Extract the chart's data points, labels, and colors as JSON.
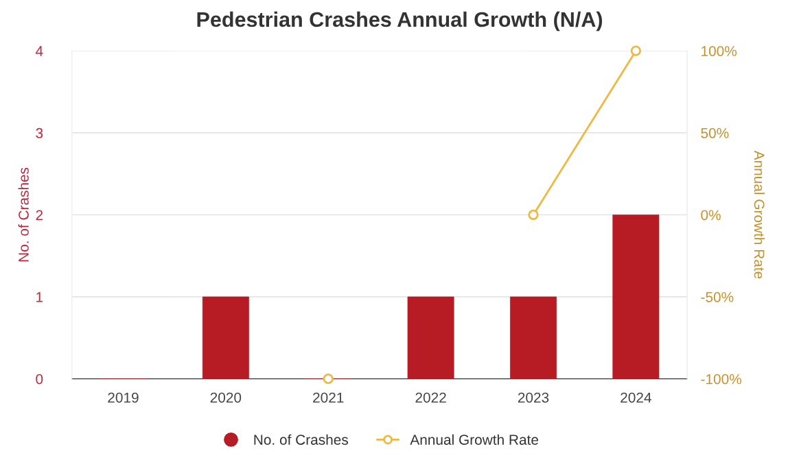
{
  "chart_data": {
    "type": "bar",
    "title": "Pedestrian Crashes Annual Growth (N/A)",
    "ylabel": "No. of Crashes",
    "y2label": "Annual Growth Rate",
    "categories": [
      "2019",
      "2020",
      "2021",
      "2022",
      "2023",
      "2024"
    ],
    "series": [
      {
        "name": "No. of Crashes",
        "color": "#b71c24",
        "values": [
          0,
          1,
          0,
          1,
          1,
          2
        ]
      },
      {
        "name": "Annual Growth Rate",
        "type": "line",
        "axis": "y2",
        "color": "#f0b840",
        "marker": "circle",
        "values": [
          null,
          null,
          -100,
          null,
          0,
          100
        ]
      }
    ],
    "ylim": [
      0,
      4
    ],
    "yticks": [
      0,
      1,
      2,
      3,
      4
    ],
    "y2lim": [
      -100,
      100
    ],
    "y2ticks": [
      {
        "value": -100,
        "label": "-100%"
      },
      {
        "value": -50,
        "label": "-50%"
      },
      {
        "value": 0,
        "label": "0%"
      },
      {
        "value": 50,
        "label": "50%"
      },
      {
        "value": 100,
        "label": "100%"
      }
    ],
    "grid": "y",
    "legend": "bottom"
  }
}
